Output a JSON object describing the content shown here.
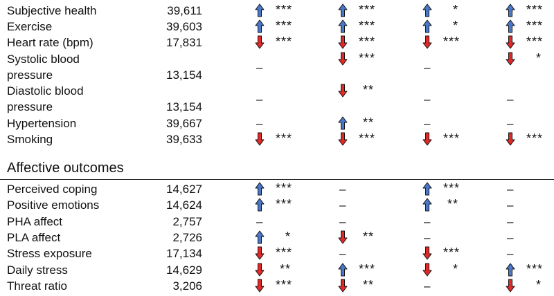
{
  "colors": {
    "up": "#4a78c8",
    "down": "#e02a2a"
  },
  "group1": [
    {
      "label": "Subjective health",
      "n": "39,611",
      "cells": [
        {
          "dir": "up",
          "stars": "***"
        },
        {
          "dir": "up",
          "stars": "***"
        },
        {
          "dir": "up",
          "stars": "*"
        },
        {
          "dir": "up",
          "stars": "***"
        }
      ]
    },
    {
      "label": "Exercise",
      "n": "39,603",
      "cells": [
        {
          "dir": "up",
          "stars": "***"
        },
        {
          "dir": "up",
          "stars": "***"
        },
        {
          "dir": "up",
          "stars": "*"
        },
        {
          "dir": "up",
          "stars": "***"
        }
      ]
    },
    {
      "label": "Heart rate (bpm)",
      "n": "17,831",
      "cells": [
        {
          "dir": "down",
          "stars": "***"
        },
        {
          "dir": "down",
          "stars": "***"
        },
        {
          "dir": "down",
          "stars": "***"
        },
        {
          "dir": "down",
          "stars": "***"
        }
      ]
    },
    {
      "label": "Systolic blood",
      "label2": "pressure",
      "n": "13,154",
      "cells": [
        {
          "dir": "none"
        },
        {
          "dir": "down",
          "stars": "***"
        },
        {
          "dir": "none"
        },
        {
          "dir": "down",
          "stars": "*"
        }
      ]
    },
    {
      "label": "Diastolic blood",
      "label2": "pressure",
      "n": "13,154",
      "cells": [
        {
          "dir": "none"
        },
        {
          "dir": "down",
          "stars": "**"
        },
        {
          "dir": "none"
        },
        {
          "dir": "none"
        }
      ]
    },
    {
      "label": "Hypertension",
      "n": "39,667",
      "cells": [
        {
          "dir": "none"
        },
        {
          "dir": "up",
          "stars": "**"
        },
        {
          "dir": "none"
        },
        {
          "dir": "none"
        }
      ]
    },
    {
      "label": "Smoking",
      "n": "39,633",
      "cells": [
        {
          "dir": "down",
          "stars": "***"
        },
        {
          "dir": "down",
          "stars": "***"
        },
        {
          "dir": "down",
          "stars": "***"
        },
        {
          "dir": "down",
          "stars": "***"
        }
      ]
    }
  ],
  "section_title": "Affective outcomes",
  "group2": [
    {
      "label": "Perceived coping",
      "n": "14,627",
      "cells": [
        {
          "dir": "up",
          "stars": "***"
        },
        {
          "dir": "none"
        },
        {
          "dir": "up",
          "stars": "***"
        },
        {
          "dir": "none"
        }
      ]
    },
    {
      "label": "Positive emotions",
      "n": "14,624",
      "cells": [
        {
          "dir": "up",
          "stars": "***"
        },
        {
          "dir": "none"
        },
        {
          "dir": "up",
          "stars": "**"
        },
        {
          "dir": "none"
        }
      ]
    },
    {
      "label": "PHA affect",
      "n": "2,757",
      "cells": [
        {
          "dir": "none"
        },
        {
          "dir": "none"
        },
        {
          "dir": "none"
        },
        {
          "dir": "none"
        }
      ]
    },
    {
      "label": "PLA affect",
      "n": "2,726",
      "cells": [
        {
          "dir": "up",
          "stars": "*"
        },
        {
          "dir": "down",
          "stars": "**"
        },
        {
          "dir": "none"
        },
        {
          "dir": "none"
        }
      ]
    },
    {
      "label": "Stress exposure",
      "n": "17,134",
      "cells": [
        {
          "dir": "down",
          "stars": "***"
        },
        {
          "dir": "none"
        },
        {
          "dir": "down",
          "stars": "***"
        },
        {
          "dir": "none"
        }
      ]
    },
    {
      "label": "Daily stress",
      "n": "14,629",
      "cells": [
        {
          "dir": "down",
          "stars": "**"
        },
        {
          "dir": "up",
          "stars": "***"
        },
        {
          "dir": "down",
          "stars": "*"
        },
        {
          "dir": "up",
          "stars": "***"
        }
      ]
    },
    {
      "label": "Threat ratio",
      "n": "3,206",
      "cells": [
        {
          "dir": "down",
          "stars": "***"
        },
        {
          "dir": "down",
          "stars": "**"
        },
        {
          "dir": "none"
        },
        {
          "dir": "down",
          "stars": "*"
        }
      ]
    }
  ]
}
